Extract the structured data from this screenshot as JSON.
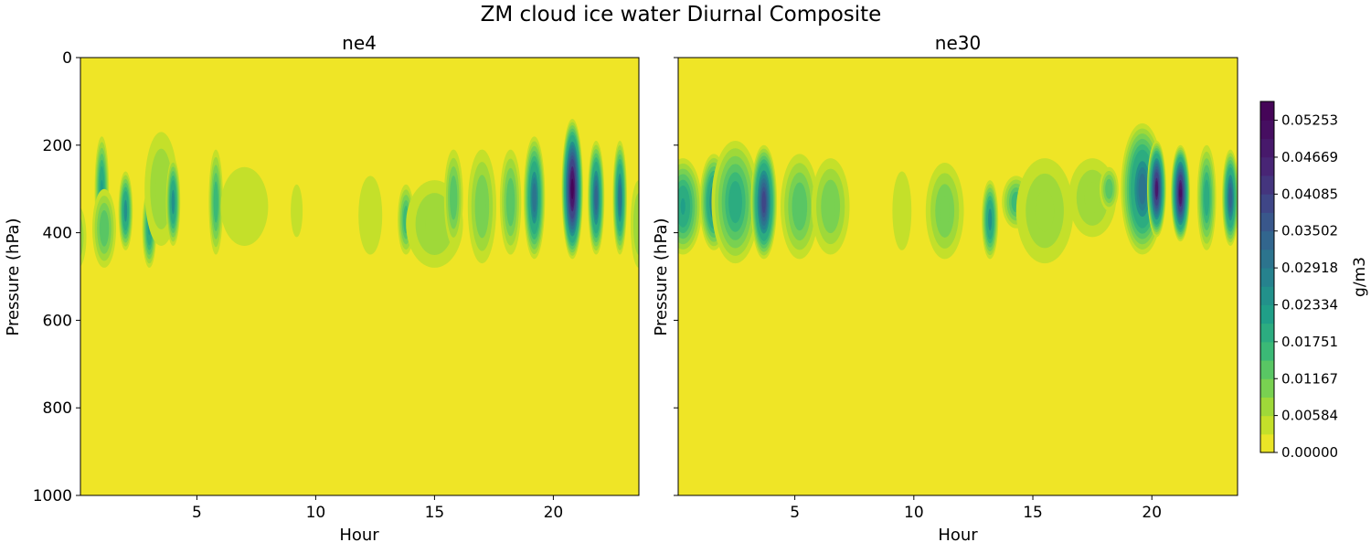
{
  "chart_data": {
    "type": "contourf",
    "title": "ZM cloud ice water Diurnal Composite",
    "colorbar": {
      "label": "g/m3",
      "tick_values": [
        0.0,
        0.00584,
        0.01167,
        0.01751,
        0.02334,
        0.02918,
        0.03502,
        0.04085,
        0.04669,
        0.05253
      ],
      "tick_labels": [
        "0.00000",
        "0.00584",
        "0.01167",
        "0.01751",
        "0.02334",
        "0.02918",
        "0.03502",
        "0.04085",
        "0.04669",
        "0.05253"
      ],
      "vmin": 0.0,
      "vmax": 0.0555,
      "colormap": "viridis_r",
      "levels": 19
    },
    "xlim": [
      0.1,
      23.6
    ],
    "ylim": [
      1000,
      0
    ],
    "xticks": [
      5,
      10,
      15,
      20
    ],
    "xtick_labels": [
      "5",
      "10",
      "15",
      "20"
    ],
    "yticks": [
      0,
      200,
      400,
      600,
      800,
      1000
    ],
    "ytick_labels": [
      "0",
      "200",
      "400",
      "600",
      "800",
      "1000"
    ],
    "panels": [
      {
        "title": "ne4",
        "xlabel": "Hour",
        "ylabel": "Pressure (hPa)",
        "show_ytick_labels": true,
        "cells": [
          {
            "hour": 0.0,
            "p": 410,
            "v": 0.006,
            "wh": 0.35,
            "wp": 70
          },
          {
            "hour": 1.0,
            "p": 300,
            "v": 0.022,
            "wh": 0.3,
            "wp": 120
          },
          {
            "hour": 1.1,
            "p": 390,
            "v": 0.012,
            "wh": 0.5,
            "wp": 90
          },
          {
            "hour": 2.0,
            "p": 350,
            "v": 0.024,
            "wh": 0.3,
            "wp": 90
          },
          {
            "hour": 3.0,
            "p": 390,
            "v": 0.022,
            "wh": 0.3,
            "wp": 90
          },
          {
            "hour": 3.5,
            "p": 300,
            "v": 0.006,
            "wh": 0.7,
            "wp": 130
          },
          {
            "hour": 4.0,
            "p": 330,
            "v": 0.024,
            "wh": 0.3,
            "wp": 100
          },
          {
            "hour": 5.8,
            "p": 330,
            "v": 0.016,
            "wh": 0.3,
            "wp": 120
          },
          {
            "hour": 7.0,
            "p": 340,
            "v": 0.005,
            "wh": 1.0,
            "wp": 90
          },
          {
            "hour": 9.2,
            "p": 350,
            "v": 0.004,
            "wh": 0.25,
            "wp": 60
          },
          {
            "hour": 12.3,
            "p": 360,
            "v": 0.005,
            "wh": 0.5,
            "wp": 90
          },
          {
            "hour": 13.8,
            "p": 370,
            "v": 0.017,
            "wh": 0.35,
            "wp": 80
          },
          {
            "hour": 15.0,
            "p": 380,
            "v": 0.006,
            "wh": 1.2,
            "wp": 100
          },
          {
            "hour": 15.8,
            "p": 320,
            "v": 0.012,
            "wh": 0.4,
            "wp": 110
          },
          {
            "hour": 17.0,
            "p": 340,
            "v": 0.011,
            "wh": 0.6,
            "wp": 130
          },
          {
            "hour": 18.2,
            "p": 330,
            "v": 0.014,
            "wh": 0.45,
            "wp": 120
          },
          {
            "hour": 19.2,
            "p": 320,
            "v": 0.031,
            "wh": 0.45,
            "wp": 140
          },
          {
            "hour": 20.8,
            "p": 300,
            "v": 0.053,
            "wh": 0.45,
            "wp": 160
          },
          {
            "hour": 21.8,
            "p": 320,
            "v": 0.035,
            "wh": 0.35,
            "wp": 130
          },
          {
            "hour": 22.8,
            "p": 320,
            "v": 0.03,
            "wh": 0.3,
            "wp": 130
          },
          {
            "hour": 23.6,
            "p": 380,
            "v": 0.006,
            "wh": 0.35,
            "wp": 100
          }
        ]
      },
      {
        "title": "ne30",
        "xlabel": "Hour",
        "ylabel": "Pressure (hPa)",
        "show_ytick_labels": false,
        "cells": [
          {
            "hour": 0.3,
            "p": 340,
            "v": 0.022,
            "wh": 0.8,
            "wp": 110
          },
          {
            "hour": 1.6,
            "p": 330,
            "v": 0.028,
            "wh": 0.6,
            "wp": 110
          },
          {
            "hour": 2.5,
            "p": 330,
            "v": 0.018,
            "wh": 1.0,
            "wp": 140
          },
          {
            "hour": 3.7,
            "p": 330,
            "v": 0.04,
            "wh": 0.55,
            "wp": 130
          },
          {
            "hour": 5.2,
            "p": 340,
            "v": 0.013,
            "wh": 0.8,
            "wp": 120
          },
          {
            "hour": 6.5,
            "p": 340,
            "v": 0.01,
            "wh": 0.8,
            "wp": 110
          },
          {
            "hour": 9.5,
            "p": 350,
            "v": 0.004,
            "wh": 0.4,
            "wp": 90
          },
          {
            "hour": 11.3,
            "p": 350,
            "v": 0.009,
            "wh": 0.8,
            "wp": 110
          },
          {
            "hour": 13.2,
            "p": 370,
            "v": 0.025,
            "wh": 0.35,
            "wp": 90
          },
          {
            "hour": 14.3,
            "p": 330,
            "v": 0.017,
            "wh": 0.6,
            "wp": 60
          },
          {
            "hour": 15.5,
            "p": 350,
            "v": 0.006,
            "wh": 1.2,
            "wp": 120
          },
          {
            "hour": 17.5,
            "p": 320,
            "v": 0.007,
            "wh": 1.0,
            "wp": 90
          },
          {
            "hour": 18.2,
            "p": 300,
            "v": 0.014,
            "wh": 0.4,
            "wp": 50
          },
          {
            "hour": 19.6,
            "p": 300,
            "v": 0.031,
            "wh": 0.9,
            "wp": 150
          },
          {
            "hour": 20.2,
            "p": 300,
            "v": 0.049,
            "wh": 0.4,
            "wp": 110
          },
          {
            "hour": 21.2,
            "p": 310,
            "v": 0.052,
            "wh": 0.4,
            "wp": 110
          },
          {
            "hour": 22.3,
            "p": 320,
            "v": 0.018,
            "wh": 0.4,
            "wp": 120
          },
          {
            "hour": 23.3,
            "p": 320,
            "v": 0.034,
            "wh": 0.35,
            "wp": 110
          }
        ]
      }
    ]
  }
}
